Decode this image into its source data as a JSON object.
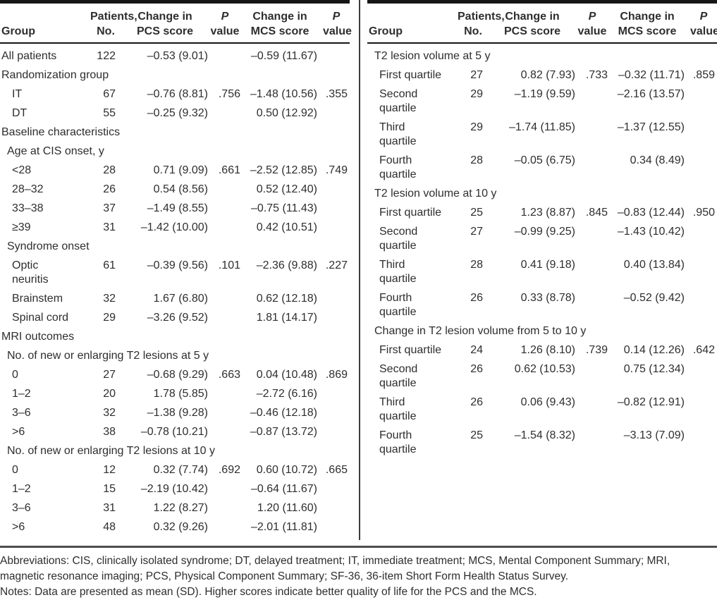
{
  "header": {
    "group": "Group",
    "patients": [
      "Patients,",
      "No."
    ],
    "pcs": [
      "Change in",
      "PCS score"
    ],
    "p": [
      "P",
      "value"
    ],
    "mcs": [
      "Change in",
      "MCS score"
    ],
    "p2": [
      "P",
      "value"
    ]
  },
  "panels": [
    {
      "rows": [
        {
          "type": "data",
          "indent": 0,
          "group": "All patients",
          "n": "122",
          "pcs": "–0.53 (9.01)",
          "p1": "",
          "mcs": "–0.59 (11.67)",
          "p2": ""
        },
        {
          "type": "section",
          "indent": 0,
          "group": "Randomization group"
        },
        {
          "type": "data",
          "indent": 2,
          "group": "IT",
          "n": "67",
          "pcs": "–0.76 (8.81)",
          "p1": ".756",
          "mcs": "–1.48 (10.56)",
          "p2": ".355"
        },
        {
          "type": "data",
          "indent": 2,
          "group": "DT",
          "n": "55",
          "pcs": "–0.25 (9.32)",
          "p1": "",
          "mcs": "0.50 (12.92)",
          "p2": ""
        },
        {
          "type": "section",
          "indent": 0,
          "group": "Baseline characteristics"
        },
        {
          "type": "section",
          "indent": 1,
          "group": "Age at CIS onset, y"
        },
        {
          "type": "data",
          "indent": 2,
          "group": "<28",
          "n": "28",
          "pcs": "0.71 (9.09)",
          "p1": ".661",
          "mcs": "–2.52 (12.85)",
          "p2": ".749"
        },
        {
          "type": "data",
          "indent": 2,
          "group": "28–32",
          "n": "26",
          "pcs": "0.54 (8.56)",
          "p1": "",
          "mcs": "0.52 (12.40)",
          "p2": ""
        },
        {
          "type": "data",
          "indent": 2,
          "group": "33–38",
          "n": "37",
          "pcs": "–1.49 (8.55)",
          "p1": "",
          "mcs": "–0.75 (11.43)",
          "p2": ""
        },
        {
          "type": "data",
          "indent": 2,
          "group": "≥39",
          "n": "31",
          "pcs": "–1.42 (10.00)",
          "p1": "",
          "mcs": "0.42 (10.51)",
          "p2": ""
        },
        {
          "type": "section",
          "indent": 1,
          "group": "Syndrome onset"
        },
        {
          "type": "data",
          "indent": 2,
          "group": "Optic\nneuritis",
          "n": "61",
          "pcs": "–0.39 (9.56)",
          "p1": ".101",
          "mcs": "–2.36 (9.88)",
          "p2": ".227"
        },
        {
          "type": "data",
          "indent": 2,
          "group": "Brainstem",
          "n": "32",
          "pcs": "1.67 (6.80)",
          "p1": "",
          "mcs": "0.62 (12.18)",
          "p2": ""
        },
        {
          "type": "data",
          "indent": 2,
          "group": "Spinal cord",
          "n": "29",
          "pcs": "–3.26 (9.52)",
          "p1": "",
          "mcs": "1.81 (14.17)",
          "p2": ""
        },
        {
          "type": "section",
          "indent": 0,
          "group": "MRI outcomes"
        },
        {
          "type": "section",
          "indent": 1,
          "group": "No. of new or enlarging T2 lesions at 5 y"
        },
        {
          "type": "data",
          "indent": 2,
          "group": "0",
          "n": "27",
          "pcs": "–0.68 (9.29)",
          "p1": ".663",
          "mcs": "0.04 (10.48)",
          "p2": ".869"
        },
        {
          "type": "data",
          "indent": 2,
          "group": "1–2",
          "n": "20",
          "pcs": "1.78 (5.85)",
          "p1": "",
          "mcs": "–2.72 (6.16)",
          "p2": ""
        },
        {
          "type": "data",
          "indent": 2,
          "group": "3–6",
          "n": "32",
          "pcs": "–1.38 (9.28)",
          "p1": "",
          "mcs": "–0.46 (12.18)",
          "p2": ""
        },
        {
          "type": "data",
          "indent": 2,
          "group": ">6",
          "n": "38",
          "pcs": "–0.78 (10.21)",
          "p1": "",
          "mcs": "–0.87 (13.72)",
          "p2": ""
        },
        {
          "type": "section",
          "indent": 1,
          "group": "No. of new or enlarging T2 lesions at 10 y"
        },
        {
          "type": "data",
          "indent": 2,
          "group": "0",
          "n": "12",
          "pcs": "0.32 (7.74)",
          "p1": ".692",
          "mcs": "0.60 (10.72)",
          "p2": ".665"
        },
        {
          "type": "data",
          "indent": 2,
          "group": "1–2",
          "n": "15",
          "pcs": "–2.19 (10.42)",
          "p1": "",
          "mcs": "–0.64 (11.67)",
          "p2": ""
        },
        {
          "type": "data",
          "indent": 2,
          "group": "3–6",
          "n": "31",
          "pcs": "1.22 (8.27)",
          "p1": "",
          "mcs": "1.20 (11.60)",
          "p2": ""
        },
        {
          "type": "data",
          "indent": 2,
          "group": ">6",
          "n": "48",
          "pcs": "0.32 (9.26)",
          "p1": "",
          "mcs": "–2.01 (11.81)",
          "p2": ""
        }
      ]
    },
    {
      "rows": [
        {
          "type": "section",
          "indent": 1,
          "group": "T2 lesion volume at 5 y"
        },
        {
          "type": "data",
          "indent": 2,
          "group": "First quartile",
          "n": "27",
          "pcs": "0.82 (7.93)",
          "p1": ".733",
          "mcs": "–0.32 (11.71)",
          "p2": ".859"
        },
        {
          "type": "data",
          "indent": 2,
          "group": "Second\nquartile",
          "n": "29",
          "pcs": "–1.19 (9.59)",
          "p1": "",
          "mcs": "–2.16 (13.57)",
          "p2": ""
        },
        {
          "type": "data",
          "indent": 2,
          "group": "Third\nquartile",
          "n": "29",
          "pcs": "–1.74 (11.85)",
          "p1": "",
          "mcs": "–1.37 (12.55)",
          "p2": ""
        },
        {
          "type": "data",
          "indent": 2,
          "group": "Fourth\nquartile",
          "n": "28",
          "pcs": "–0.05 (6.75)",
          "p1": "",
          "mcs": "0.34 (8.49)",
          "p2": ""
        },
        {
          "type": "section",
          "indent": 1,
          "group": "T2 lesion volume at 10 y"
        },
        {
          "type": "data",
          "indent": 2,
          "group": "First quartile",
          "n": "25",
          "pcs": "1.23 (8.87)",
          "p1": ".845",
          "mcs": "–0.83 (12.44)",
          "p2": ".950"
        },
        {
          "type": "data",
          "indent": 2,
          "group": "Second\nquartile",
          "n": "27",
          "pcs": "–0.99 (9.25)",
          "p1": "",
          "mcs": "–1.43 (10.42)",
          "p2": ""
        },
        {
          "type": "data",
          "indent": 2,
          "group": "Third\nquartile",
          "n": "28",
          "pcs": "0.41 (9.18)",
          "p1": "",
          "mcs": "0.40 (13.84)",
          "p2": ""
        },
        {
          "type": "data",
          "indent": 2,
          "group": "Fourth\nquartile",
          "n": "26",
          "pcs": "0.33 (8.78)",
          "p1": "",
          "mcs": "–0.52 (9.42)",
          "p2": ""
        },
        {
          "type": "section",
          "indent": 1,
          "group": "Change in T2 lesion volume from 5 to 10 y"
        },
        {
          "type": "data",
          "indent": 2,
          "group": "First quartile",
          "n": "24",
          "pcs": "1.26 (8.10)",
          "p1": ".739",
          "mcs": "0.14 (12.26)",
          "p2": ".642"
        },
        {
          "type": "data",
          "indent": 2,
          "group": "Second\nquartile",
          "n": "26",
          "pcs": "0.62 (10.53)",
          "p1": "",
          "mcs": "0.75 (12.34)",
          "p2": ""
        },
        {
          "type": "data",
          "indent": 2,
          "group": "Third\nquartile",
          "n": "26",
          "pcs": "0.06 (9.43)",
          "p1": "",
          "mcs": "–0.82 (12.91)",
          "p2": ""
        },
        {
          "type": "data",
          "indent": 2,
          "group": "Fourth\nquartile",
          "n": "25",
          "pcs": "–1.54 (8.32)",
          "p1": "",
          "mcs": "–3.13 (7.09)",
          "p2": ""
        }
      ]
    }
  ],
  "footnotes": {
    "abbreviations": "Abbreviations: CIS, clinically isolated syndrome; DT, delayed treatment; IT, immediate treatment; MCS, Mental Component Summary; MRI,\nmagnetic resonance imaging; PCS, Physical Component Summary; SF-36, 36-item Short Form Health Status Survey.",
    "notes": "Notes: Data are presented as mean (SD). Higher scores indicate better quality of life for the PCS and the MCS."
  },
  "colors": {
    "text": "#2e2e2e",
    "rule_dark": "#161616",
    "rule_gray": "#4d4d4d",
    "divider": "#3c3c3c",
    "background": "#ffffff"
  }
}
